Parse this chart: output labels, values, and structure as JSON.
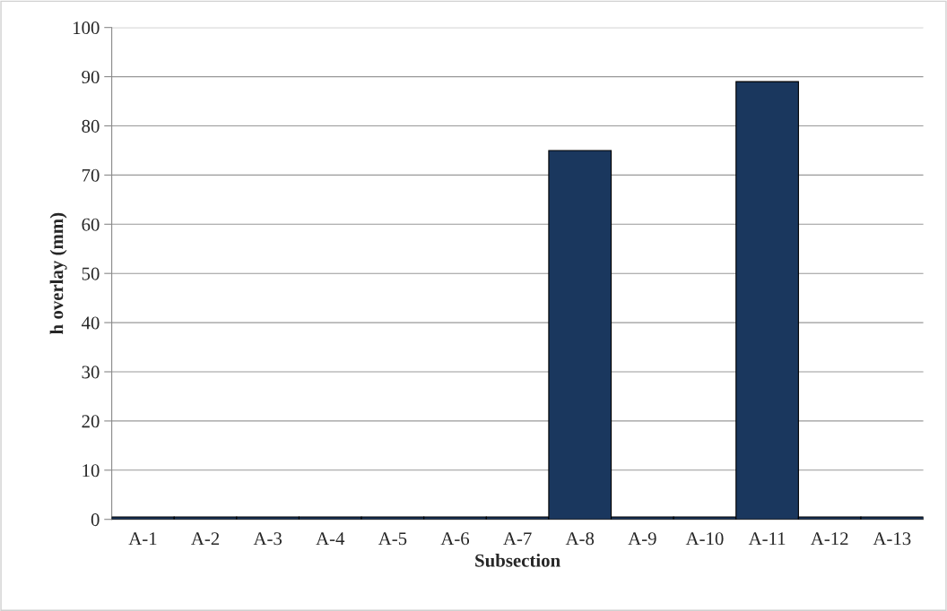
{
  "chart_data": {
    "type": "bar",
    "xlabel": "Subsection",
    "ylabel": "h overlay (mm)",
    "categories": [
      "A-1",
      "A-2",
      "A-3",
      "A-4",
      "A-5",
      "A-6",
      "A-7",
      "A-8",
      "A-9",
      "A-10",
      "A-11",
      "A-12",
      "A-13"
    ],
    "values": [
      0.5,
      0.5,
      0.5,
      0.5,
      0.5,
      0.5,
      0.5,
      75,
      0.5,
      0.5,
      89,
      0.5,
      0.5
    ],
    "color": "#1a375e",
    "ylim": [
      0,
      100
    ],
    "yticks": [
      0,
      10,
      20,
      30,
      40,
      50,
      60,
      70,
      80,
      90,
      100
    ],
    "grid": "y",
    "legend": false
  }
}
